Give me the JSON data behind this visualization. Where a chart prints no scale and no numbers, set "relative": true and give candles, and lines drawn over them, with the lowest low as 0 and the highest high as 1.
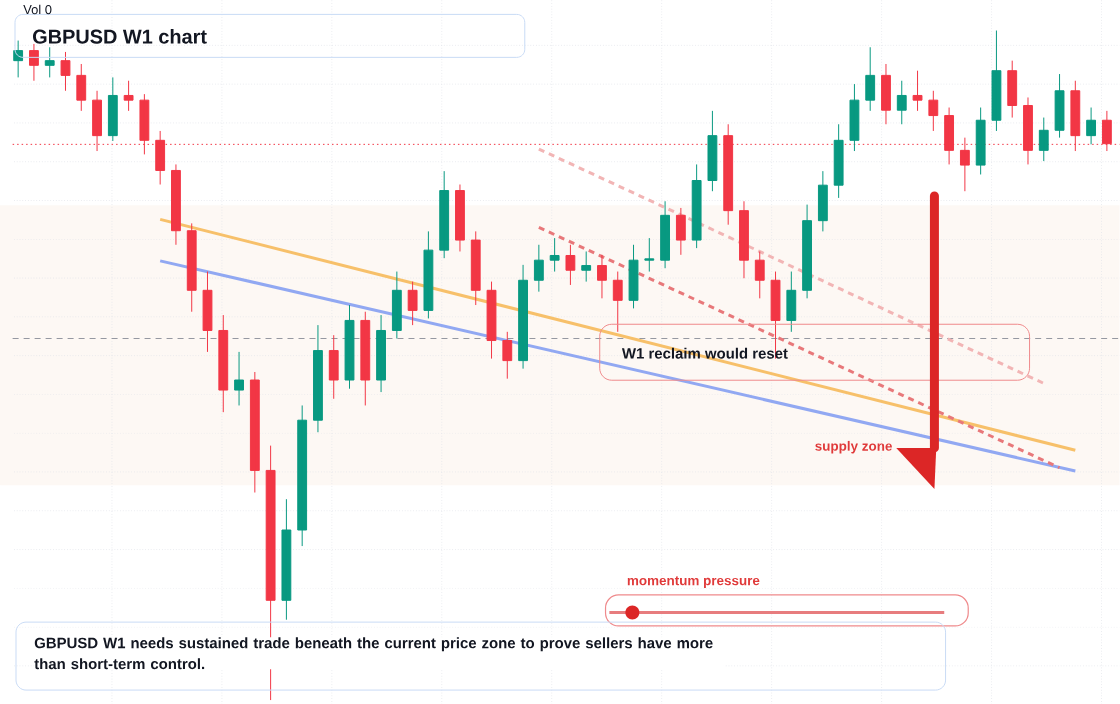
{
  "chart_data": {
    "type": "candlestick",
    "title": "GBPUSD W1 chart",
    "relative": true,
    "grid": true,
    "categories": [
      null,
      null,
      null,
      null,
      null,
      null,
      null,
      null,
      null,
      null,
      null,
      null,
      null,
      null,
      null,
      null,
      null,
      null,
      null,
      null,
      null,
      null,
      null,
      null,
      null,
      null,
      null,
      null,
      null,
      null,
      null,
      null,
      null,
      null,
      null,
      null,
      null,
      null,
      null,
      null,
      null,
      null,
      null,
      null,
      null,
      null,
      null,
      null,
      null,
      null,
      null,
      null,
      null,
      null,
      null,
      null,
      null,
      null,
      null,
      null,
      null,
      null,
      null,
      null,
      null,
      null,
      null,
      null,
      null,
      null
    ],
    "ohlc": [
      [
        0.955,
        0.985,
        0.93,
        0.97
      ],
      [
        0.97,
        0.98,
        0.925,
        0.948
      ],
      [
        0.948,
        0.975,
        0.93,
        0.955
      ],
      [
        0.955,
        0.968,
        0.91,
        0.933
      ],
      [
        0.933,
        0.95,
        0.88,
        0.896
      ],
      [
        0.896,
        0.91,
        0.82,
        0.843
      ],
      [
        0.843,
        0.93,
        0.835,
        0.903
      ],
      [
        0.903,
        0.925,
        0.88,
        0.896
      ],
      [
        0.896,
        0.905,
        0.815,
        0.836
      ],
      [
        0.836,
        0.85,
        0.77,
        0.791
      ],
      [
        0.791,
        0.8,
        0.68,
        0.701
      ],
      [
        0.701,
        0.712,
        0.58,
        0.612
      ],
      [
        0.612,
        0.64,
        0.52,
        0.552
      ],
      [
        0.552,
        0.575,
        0.43,
        0.463
      ],
      [
        0.463,
        0.52,
        0.44,
        0.478
      ],
      [
        0.478,
        0.49,
        0.31,
        0.343
      ],
      [
        0.343,
        0.38,
        0.0,
        0.149
      ],
      [
        0.149,
        0.3,
        0.12,
        0.254
      ],
      [
        0.254,
        0.44,
        0.23,
        0.418
      ],
      [
        0.418,
        0.56,
        0.4,
        0.522
      ],
      [
        0.522,
        0.545,
        0.45,
        0.478
      ],
      [
        0.478,
        0.59,
        0.465,
        0.567
      ],
      [
        0.567,
        0.58,
        0.44,
        0.478
      ],
      [
        0.478,
        0.575,
        0.46,
        0.552
      ],
      [
        0.552,
        0.64,
        0.54,
        0.612
      ],
      [
        0.612,
        0.625,
        0.56,
        0.582
      ],
      [
        0.582,
        0.7,
        0.57,
        0.672
      ],
      [
        0.672,
        0.79,
        0.66,
        0.761
      ],
      [
        0.761,
        0.77,
        0.67,
        0.687
      ],
      [
        0.687,
        0.7,
        0.59,
        0.612
      ],
      [
        0.612,
        0.625,
        0.51,
        0.537
      ],
      [
        0.537,
        0.55,
        0.48,
        0.507
      ],
      [
        0.507,
        0.65,
        0.495,
        0.627
      ],
      [
        0.627,
        0.68,
        0.61,
        0.657
      ],
      [
        0.657,
        0.69,
        0.64,
        0.664
      ],
      [
        0.664,
        0.68,
        0.62,
        0.642
      ],
      [
        0.642,
        0.67,
        0.625,
        0.649
      ],
      [
        0.649,
        0.665,
        0.6,
        0.627
      ],
      [
        0.627,
        0.64,
        0.55,
        0.597
      ],
      [
        0.597,
        0.68,
        0.585,
        0.657
      ],
      [
        0.657,
        0.69,
        0.64,
        0.657
      ],
      [
        0.657,
        0.745,
        0.645,
        0.724
      ],
      [
        0.724,
        0.735,
        0.665,
        0.687
      ],
      [
        0.687,
        0.8,
        0.675,
        0.776
      ],
      [
        0.776,
        0.88,
        0.76,
        0.843
      ],
      [
        0.843,
        0.86,
        0.71,
        0.731
      ],
      [
        0.731,
        0.745,
        0.63,
        0.657
      ],
      [
        0.657,
        0.67,
        0.6,
        0.627
      ],
      [
        0.627,
        0.64,
        0.51,
        0.567
      ],
      [
        0.567,
        0.64,
        0.55,
        0.612
      ],
      [
        0.612,
        0.74,
        0.6,
        0.716
      ],
      [
        0.716,
        0.79,
        0.7,
        0.769
      ],
      [
        0.769,
        0.86,
        0.75,
        0.836
      ],
      [
        0.836,
        0.92,
        0.82,
        0.896
      ],
      [
        0.896,
        0.975,
        0.88,
        0.933
      ],
      [
        0.933,
        0.95,
        0.86,
        0.881
      ],
      [
        0.881,
        0.925,
        0.86,
        0.903
      ],
      [
        0.903,
        0.94,
        0.88,
        0.896
      ],
      [
        0.896,
        0.91,
        0.85,
        0.873
      ],
      [
        0.873,
        0.885,
        0.8,
        0.821
      ],
      [
        0.821,
        0.84,
        0.76,
        0.799
      ],
      [
        0.799,
        0.885,
        0.785,
        0.866
      ],
      [
        0.866,
        1.0,
        0.85,
        0.94
      ],
      [
        0.94,
        0.955,
        0.87,
        0.888
      ],
      [
        0.888,
        0.9,
        0.8,
        0.821
      ],
      [
        0.821,
        0.87,
        0.805,
        0.851
      ],
      [
        0.851,
        0.935,
        0.84,
        0.91
      ],
      [
        0.91,
        0.925,
        0.82,
        0.843
      ],
      [
        0.843,
        0.885,
        0.83,
        0.866
      ],
      [
        0.866,
        0.88,
        0.82,
        0.831
      ]
    ],
    "series": [
      {
        "type": "line",
        "color": "#f7c06a",
        "line_style": "solid",
        "values": [
          null,
          null,
          null,
          null,
          null,
          null,
          null,
          null,
          null,
          0.718,
          null,
          null,
          null,
          null,
          null,
          null,
          null,
          null,
          null,
          null,
          null,
          null,
          null,
          null,
          null,
          null,
          null,
          null,
          null,
          null,
          null,
          null,
          null,
          null,
          null,
          null,
          null,
          null,
          null,
          null,
          null,
          null,
          null,
          null,
          null,
          null,
          null,
          null,
          null,
          null,
          null,
          null,
          null,
          null,
          null,
          null,
          null,
          null,
          null,
          null,
          null,
          null,
          null,
          null,
          null,
          null,
          null,
          0.373,
          null,
          null
        ]
      },
      {
        "type": "line",
        "color": "#91a8f2",
        "line_style": "solid",
        "values": [
          null,
          null,
          null,
          null,
          null,
          null,
          null,
          null,
          null,
          0.656,
          null,
          null,
          null,
          null,
          null,
          null,
          null,
          null,
          null,
          null,
          null,
          null,
          null,
          null,
          null,
          null,
          null,
          null,
          null,
          null,
          null,
          null,
          null,
          null,
          null,
          null,
          null,
          null,
          null,
          null,
          null,
          null,
          null,
          null,
          null,
          null,
          null,
          null,
          null,
          null,
          null,
          null,
          null,
          null,
          null,
          null,
          null,
          null,
          null,
          null,
          null,
          null,
          null,
          null,
          null,
          null,
          null,
          0.342,
          null,
          null
        ]
      },
      {
        "type": "line",
        "color": "#e8787a",
        "line_style": "dashed",
        "values": [
          null,
          null,
          null,
          null,
          null,
          null,
          null,
          null,
          null,
          null,
          null,
          null,
          null,
          null,
          null,
          null,
          null,
          null,
          null,
          null,
          null,
          null,
          null,
          null,
          null,
          null,
          null,
          null,
          null,
          null,
          null,
          null,
          null,
          0.706,
          null,
          null,
          null,
          null,
          null,
          null,
          null,
          null,
          null,
          null,
          null,
          null,
          null,
          null,
          null,
          null,
          null,
          null,
          null,
          null,
          null,
          null,
          null,
          null,
          null,
          null,
          null,
          null,
          null,
          null,
          null,
          null,
          0.347,
          null,
          null,
          null
        ]
      },
      {
        "type": "line",
        "color": "#f2b5b5",
        "line_style": "dashed",
        "values": [
          null,
          null,
          null,
          null,
          null,
          null,
          null,
          null,
          null,
          null,
          null,
          null,
          null,
          null,
          null,
          null,
          null,
          null,
          null,
          null,
          null,
          null,
          null,
          null,
          null,
          null,
          null,
          null,
          null,
          null,
          null,
          null,
          null,
          0.823,
          null,
          null,
          null,
          null,
          null,
          null,
          null,
          null,
          null,
          null,
          null,
          null,
          null,
          null,
          null,
          null,
          null,
          null,
          null,
          null,
          null,
          null,
          null,
          null,
          null,
          null,
          null,
          null,
          null,
          null,
          null,
          0.473,
          null,
          null,
          null,
          null
        ]
      }
    ],
    "ref_lines": [
      {
        "axis": "y",
        "value": 0.83,
        "color": "#f23645",
        "line_style": "dotted"
      },
      {
        "axis": "y",
        "value": 0.54,
        "color": "#9598a1",
        "line_style": "dashed"
      }
    ],
    "bands": [
      {
        "axis": "y",
        "from": 0.321,
        "to": 0.739,
        "label": "supply zone",
        "color": "#fdf8f4"
      }
    ],
    "annotations": [
      "Vol 0",
      "W1 reclaim would reset",
      "momentum pressure",
      "GBPUSD W1 needs sustained trade beneath the current price zone to prove sellers have more than short-term control."
    ]
  }
}
